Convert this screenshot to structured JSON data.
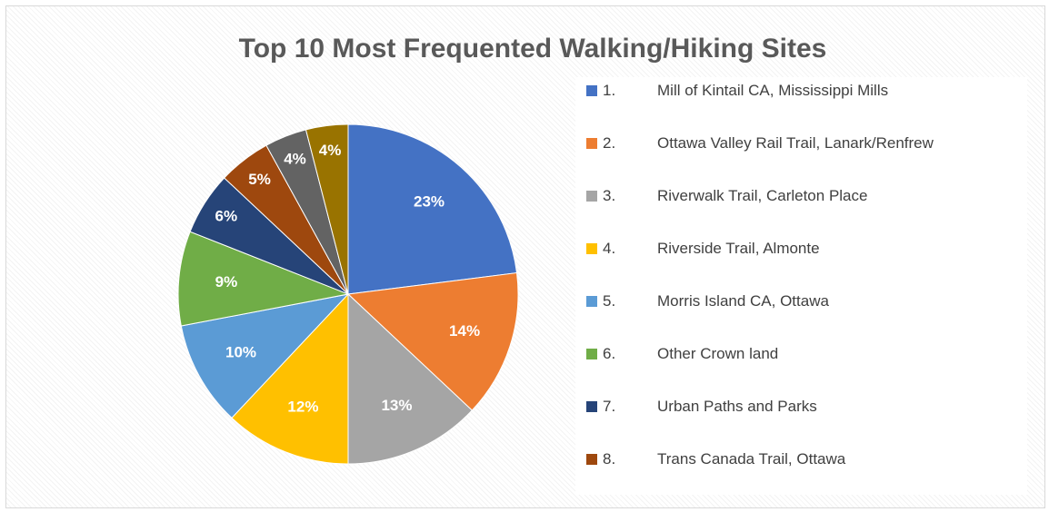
{
  "chart_data": {
    "type": "pie",
    "title": "Top 10 Most Frequented Walking/Hiking Sites",
    "categories": [
      "1.\tMill of Kintail CA, Mississippi Mills",
      "2.\tOttawa Valley Rail Trail, Lanark/Renfrew",
      "3.\tRiverwalk Trail, Carleton Place",
      "4.\tRiverside Trail, Almonte",
      "5.\tMorris Island CA, Ottawa",
      "6.\tOther Crown land",
      "7.\tUrban Paths and Parks",
      "8.\tTrans Canada Trail, Ottawa",
      null,
      null
    ],
    "values": [
      23,
      14,
      13,
      12,
      10,
      9,
      6,
      5,
      4,
      4
    ],
    "value_labels": [
      "23%",
      "14%",
      "13%",
      "12%",
      "10%",
      "9%",
      "6%",
      "5%",
      "4%",
      "4%"
    ],
    "colors": [
      "#4472c4",
      "#ed7d31",
      "#a5a5a5",
      "#ffc000",
      "#5b9bd5",
      "#70ad47",
      "#264478",
      "#9e480e",
      "#636363",
      "#997300"
    ],
    "legend": "right"
  }
}
